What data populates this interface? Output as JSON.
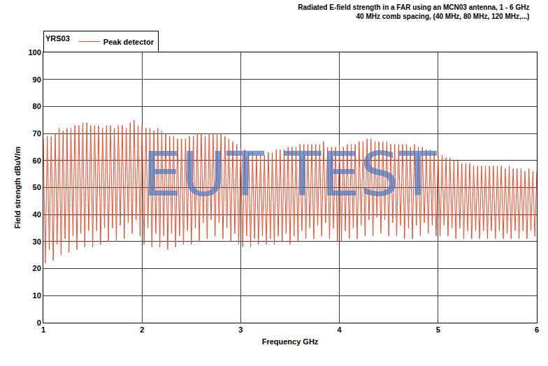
{
  "chart_data": {
    "type": "line",
    "title": "Radiated E-field strength in a FAR using an MCN03 antenna, 1 - 6 GHz",
    "subtitle": "40 MHz comb spacing, (40 MHz, 80 MHz, 120 MHz,...)",
    "legend_title": "YRS03",
    "x_label": "Frequency GHz",
    "y_label": "Field strength dBuV/m",
    "annotations": [
      {
        "text": "EUT TEST"
      }
    ],
    "xlim": [
      1,
      6
    ],
    "xticks": [
      1,
      2,
      3,
      4,
      5,
      6
    ],
    "ylim": [
      0,
      100
    ],
    "yticks": [
      0,
      10,
      20,
      30,
      40,
      50,
      60,
      70,
      80,
      90,
      100
    ],
    "grid": true,
    "legend": "top left",
    "x": [
      1,
      1.02,
      1.04,
      1.06,
      1.08,
      1.1,
      1.12,
      1.14,
      1.16,
      1.18,
      1.2,
      1.22,
      1.24,
      1.26,
      1.28,
      1.3,
      1.32,
      1.34,
      1.36,
      1.38,
      1.4,
      1.42,
      1.44,
      1.46,
      1.48,
      1.5,
      1.52,
      1.54,
      1.56,
      1.58,
      1.6,
      1.62,
      1.64,
      1.66,
      1.68,
      1.7,
      1.72,
      1.74,
      1.76,
      1.78,
      1.8,
      1.82,
      1.84,
      1.86,
      1.88,
      1.9,
      1.92,
      1.94,
      1.96,
      1.98,
      2,
      2.02,
      2.04,
      2.06,
      2.08,
      2.1,
      2.12,
      2.14,
      2.16,
      2.18,
      2.2,
      2.22,
      2.24,
      2.26,
      2.28,
      2.3,
      2.32,
      2.34,
      2.36,
      2.38,
      2.4,
      2.42,
      2.44,
      2.46,
      2.48,
      2.5,
      2.52,
      2.54,
      2.56,
      2.58,
      2.6,
      2.62,
      2.64,
      2.66,
      2.68,
      2.7,
      2.72,
      2.74,
      2.76,
      2.78,
      2.8,
      2.82,
      2.84,
      2.86,
      2.88,
      2.9,
      2.92,
      2.94,
      2.96,
      2.98,
      3,
      3.02,
      3.04,
      3.06,
      3.08,
      3.1,
      3.12,
      3.14,
      3.16,
      3.18,
      3.2,
      3.22,
      3.24,
      3.26,
      3.28,
      3.3,
      3.32,
      3.34,
      3.36,
      3.38,
      3.4,
      3.42,
      3.44,
      3.46,
      3.48,
      3.5,
      3.52,
      3.54,
      3.56,
      3.58,
      3.6,
      3.62,
      3.64,
      3.66,
      3.68,
      3.7,
      3.72,
      3.74,
      3.76,
      3.78,
      3.8,
      3.82,
      3.84,
      3.86,
      3.88,
      3.9,
      3.92,
      3.94,
      3.96,
      3.98,
      4,
      4.02,
      4.04,
      4.06,
      4.08,
      4.1,
      4.12,
      4.14,
      4.16,
      4.18,
      4.2,
      4.22,
      4.24,
      4.26,
      4.28,
      4.3,
      4.32,
      4.34,
      4.36,
      4.38,
      4.4,
      4.42,
      4.44,
      4.46,
      4.48,
      4.5,
      4.52,
      4.54,
      4.56,
      4.58,
      4.6,
      4.62,
      4.64,
      4.66,
      4.68,
      4.7,
      4.72,
      4.74,
      4.76,
      4.78,
      4.8,
      4.82,
      4.84,
      4.86,
      4.88,
      4.9,
      4.92,
      4.94,
      4.96,
      4.98,
      5,
      5.02,
      5.04,
      5.06,
      5.08,
      5.1,
      5.12,
      5.14,
      5.16,
      5.18,
      5.2,
      5.22,
      5.24,
      5.26,
      5.28,
      5.3,
      5.32,
      5.34,
      5.36,
      5.38,
      5.4,
      5.42,
      5.44,
      5.46,
      5.48,
      5.5,
      5.52,
      5.54,
      5.56,
      5.58,
      5.6,
      5.62,
      5.64,
      5.66,
      5.68,
      5.7,
      5.72,
      5.74,
      5.76,
      5.78,
      5.8,
      5.82,
      5.84,
      5.86,
      5.88,
      5.9,
      5.92,
      5.94,
      5.96,
      5.98,
      6
    ],
    "series": [
      {
        "name": "Peak detector",
        "color": "#f04a2a",
        "values": [
          68,
          22,
          69,
          27,
          69,
          23,
          70,
          29,
          72,
          25,
          71,
          31,
          72,
          26,
          72,
          32,
          73,
          27,
          73,
          33,
          74,
          28,
          74,
          34,
          73,
          28,
          73,
          34,
          73,
          29,
          72,
          35,
          73,
          30,
          73,
          35,
          72,
          30,
          73,
          36,
          73,
          31,
          72,
          37,
          74,
          33,
          75,
          38,
          73,
          32,
          73,
          29,
          72,
          35,
          72,
          28,
          71,
          33,
          72,
          28,
          71,
          32,
          70,
          27,
          69,
          33,
          69,
          28,
          68,
          32,
          68,
          29,
          68,
          34,
          69,
          29,
          69,
          35,
          70,
          30,
          70,
          37,
          69,
          31,
          70,
          38,
          70,
          32,
          70,
          37,
          70,
          31,
          69,
          35,
          68,
          30,
          67,
          33,
          66,
          29,
          65,
          28,
          64,
          32,
          63,
          28,
          63,
          31,
          62,
          29,
          62,
          32,
          62,
          29,
          63,
          31,
          63,
          29,
          64,
          32,
          64,
          30,
          64,
          33,
          65,
          29,
          65,
          32,
          65,
          30,
          66,
          34,
          66,
          31,
          66,
          35,
          66,
          31,
          66,
          36,
          66,
          32,
          67,
          37,
          65,
          31,
          65,
          35,
          65,
          30,
          66,
          30,
          65,
          34,
          66,
          31,
          66,
          35,
          66,
          31,
          67,
          36,
          67,
          32,
          68,
          38,
          68,
          32,
          67,
          39,
          67,
          33,
          67,
          38,
          67,
          32,
          66,
          37,
          66,
          32,
          66,
          36,
          66,
          31,
          66,
          35,
          65,
          31,
          66,
          36,
          65,
          32,
          65,
          37,
          64,
          33,
          64,
          36,
          63,
          32,
          63,
          32,
          62,
          36,
          61,
          32,
          61,
          35,
          60,
          31,
          60,
          35,
          59,
          31,
          59,
          34,
          59,
          31,
          58,
          34,
          58,
          31,
          58,
          34,
          58,
          31,
          58,
          34,
          58,
          31,
          58,
          34,
          58,
          31,
          57,
          33,
          58,
          31,
          57,
          34,
          57,
          31,
          57,
          34,
          56,
          31,
          57,
          34,
          56,
          32,
          56
        ]
      }
    ]
  }
}
